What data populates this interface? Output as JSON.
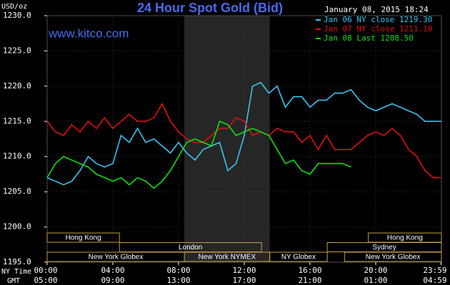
{
  "chart_data": {
    "type": "line",
    "title": "24 Hour Spot Gold (Bid)",
    "timestamp": "January 08, 2015 18:24",
    "watermark": "www.kitco.com",
    "y_label": "USD/oz",
    "x_row_labels": [
      "NY Time",
      "GMT"
    ],
    "xlim": [
      0,
      24
    ],
    "xticks": [
      {
        "value": 0,
        "label": "00:00"
      },
      {
        "value": 4,
        "label": "04:00"
      },
      {
        "value": 8,
        "label": "08:00"
      },
      {
        "value": 12,
        "label": "12:00"
      },
      {
        "value": 16,
        "label": "16:00"
      },
      {
        "value": 20,
        "label": "20:00"
      },
      {
        "value": 23.98,
        "label": "23:59"
      }
    ],
    "gmt_tick_labels": [
      "05:00",
      "09:00",
      "13:00",
      "17:00",
      "21:00",
      "01:00",
      "04:59"
    ],
    "ylim": [
      1195,
      1230
    ],
    "yticks": [
      {
        "value": 1195,
        "label": "1195.0"
      },
      {
        "value": 1200,
        "label": "1200.0"
      },
      {
        "value": 1205,
        "label": "1205.0"
      },
      {
        "value": 1210,
        "label": "1210.0"
      },
      {
        "value": 1215,
        "label": "1215.0"
      },
      {
        "value": 1220,
        "label": "1220.0"
      },
      {
        "value": 1225,
        "label": "1225.0"
      },
      {
        "value": 1230,
        "label": "1230.0"
      }
    ],
    "grid": true,
    "legend_position": "top-right",
    "x": [
      0,
      0.5,
      1,
      1.5,
      2,
      2.5,
      3,
      3.5,
      4,
      4.5,
      5,
      5.5,
      6,
      6.5,
      7,
      7.5,
      8,
      8.5,
      9,
      9.5,
      10,
      10.5,
      11,
      11.5,
      12,
      12.5,
      13,
      13.5,
      14,
      14.5,
      15,
      15.5,
      16,
      16.5,
      17,
      17.5,
      18,
      18.5,
      19,
      19.5,
      20,
      20.5,
      21,
      21.5,
      22,
      22.5,
      23,
      23.5,
      24
    ],
    "series": [
      {
        "name": "Jan 06 NY close 1219.30",
        "color": "#3cc4f0",
        "values": [
          1207,
          1206.5,
          1206,
          1206.5,
          1208,
          1210,
          1209,
          1208.5,
          1209,
          1213,
          1212,
          1214,
          1212,
          1212.5,
          1211.5,
          1210.5,
          1212,
          1210.5,
          1209.5,
          1211,
          1211.5,
          1212,
          1208,
          1209,
          1213,
          1220,
          1220.5,
          1219,
          1220,
          1217,
          1218.5,
          1218.5,
          1217,
          1218,
          1218,
          1219,
          1219,
          1219.5,
          1218,
          1217,
          1216.5,
          1217,
          1217.5,
          1217,
          1216.5,
          1216,
          1215,
          1215,
          1215
        ]
      },
      {
        "name": "Jan 07 NY close 1211.10",
        "color": "#e01010",
        "values": [
          1215,
          1213.5,
          1213,
          1214.5,
          1213.5,
          1215,
          1214,
          1215.5,
          1214,
          1215,
          1216,
          1215,
          1215,
          1215.5,
          1217.5,
          1215,
          1213.5,
          1212.5,
          1212,
          1212,
          1213,
          1214,
          1214,
          1215.5,
          1215,
          1213,
          1213.5,
          1213,
          1214,
          1213.5,
          1213.5,
          1212,
          1213,
          1211,
          1213,
          1211,
          1211,
          1211,
          1212,
          1213,
          1213.5,
          1213,
          1214,
          1213,
          1211,
          1210,
          1208,
          1207,
          1207
        ]
      },
      {
        "name": "Jan 08 Last 1208.50",
        "color": "#10e010",
        "values": [
          1207,
          1209,
          1210,
          1209.5,
          1209,
          1208.5,
          1207.5,
          1207,
          1206.5,
          1207,
          1206,
          1207,
          1206.5,
          1205.5,
          1206.5,
          1208,
          1210,
          1212,
          1212.5,
          1212,
          1211.5,
          1215,
          1214.5,
          1213,
          1213.5,
          1214,
          1213.5,
          1213,
          1211,
          1209,
          1209.5,
          1208,
          1207.5,
          1209,
          1209,
          1209,
          1209,
          1208.5,
          null,
          null,
          null,
          null,
          null,
          null,
          null,
          null,
          null,
          null,
          null
        ]
      }
    ],
    "sessions": [
      {
        "label": "Hong Kong",
        "row": 0,
        "start": 0,
        "end": 4.4
      },
      {
        "label": "London",
        "row": 1,
        "start": 4.4,
        "end": 13.05
      },
      {
        "label": "New York Globex",
        "row": 2,
        "start": 0,
        "end": 8.35
      },
      {
        "label": "New York NYMEX",
        "row": 2,
        "start": 8.35,
        "end": 13.55,
        "shade": true
      },
      {
        "label": "NY Globex",
        "row": 2,
        "start": 13.55,
        "end": 17.05
      },
      {
        "label": "Sydney",
        "row": 1,
        "start": 17.05,
        "end": 24
      },
      {
        "label": "Hong Kong",
        "row": 0,
        "start": 19.55,
        "end": 24
      },
      {
        "label": "New York Globex",
        "row": 2,
        "start": 18.1,
        "end": 24
      }
    ]
  }
}
